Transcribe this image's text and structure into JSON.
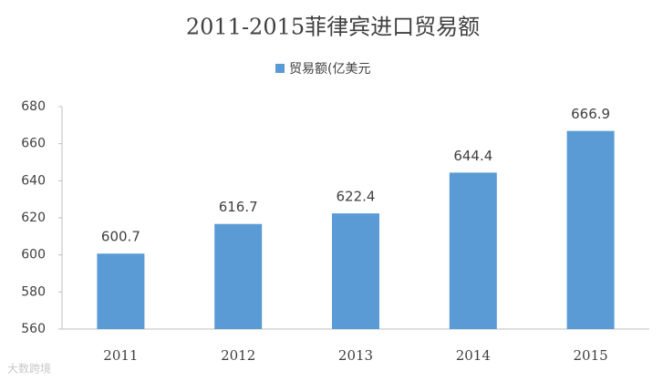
{
  "chart_data": {
    "type": "bar",
    "title": "2011-2015菲律宾进口贸易额",
    "categories": [
      "2011",
      "2012",
      "2013",
      "2014",
      "2015"
    ],
    "series": [
      {
        "name": "贸易额(亿美元",
        "color": "#5b9bd5",
        "values": [
          600.7,
          616.7,
          622.4,
          644.4,
          666.9
        ]
      }
    ],
    "ylim": [
      560,
      680
    ],
    "yticks": [
      560,
      580,
      600,
      620,
      640,
      660,
      680
    ],
    "grid": false,
    "legend": "top",
    "data_labels": true,
    "watermark": "大数跨境"
  }
}
